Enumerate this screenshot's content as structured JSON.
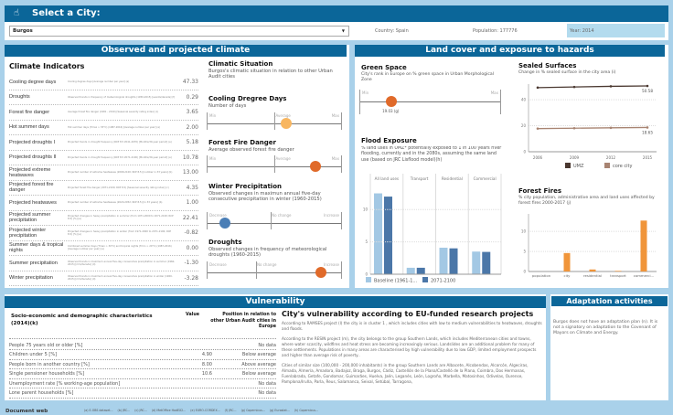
{
  "header": {
    "title": "Select a City:",
    "city": "Burgos",
    "country": "Country: Spain",
    "population": "Population: 177776",
    "year": "Year: 2014"
  },
  "colors": {
    "header": "#0b6699",
    "background": "#a9d1ea",
    "umz": "#4a3830",
    "core_city": "#a88472",
    "baseline": "#a3c8e4",
    "future": "#4b77a8",
    "fires": "#f0953a"
  },
  "climate": {
    "title": "Observed and projected climate",
    "indicators_title": "Climate Indicators",
    "indicators": [
      {
        "name": "Cooling degree days",
        "desc": "Cooling degree days [Average number per year] (a)",
        "value": "47.33"
      },
      {
        "name": "Droughts",
        "desc": "Observed trends in frequency of meteorological droughts (1950-2015) [events/decade] (f)",
        "value": "0.29"
      },
      {
        "name": "Forest fire danger",
        "desc": "Average forest fire danger (1981 - 2010) [Seasonal severity rating index] (c)",
        "value": "3.65"
      },
      {
        "name": "Hot summer days",
        "desc": "Hot summer days (Tmax > 35°C) (1987-2016) [Average number per year] (a)",
        "value": "2.00"
      },
      {
        "name": "Projected droughts I",
        "desc": "Projected trends in drought frequency (RCP 8.5 2041-2070) [Months/30-year period] (e)",
        "value": "5.18"
      },
      {
        "name": "Projected droughts II",
        "desc": "Projected trends in drought frequency (RCP 8.5 2071-2100) [Months/30-year period] (e)",
        "value": "10.78"
      },
      {
        "name": "Projected extreme heatwaves",
        "desc": "Projected number of extreme heatwaves (2068-2100; RCP 8.5) [number in 33 years] (b)",
        "value": "13.00"
      },
      {
        "name": "Projected forest fire danger",
        "desc": "Projected forest fire danger (2071-2100; RCP 8.5) [Seasonal severity rating index] (c)",
        "value": "4.35"
      },
      {
        "name": "Projected heatwaves",
        "desc": "Projected number of extreme heatwaves (2020-2052; RCP 8.5) [in 33 years] (b)",
        "value": "1.00"
      },
      {
        "name": "Projected summer precipitation",
        "desc": "Projected changes in heavy precipitation in summer (from 1971-2000 to 2071-2100; RCP 8.5) [%] (e)",
        "value": "22.41"
      },
      {
        "name": "Projected winter precipitation",
        "desc": "Projected changes in heavy precipitation in winter (from 1971-2000 to 2071-2100; RCP 8.5) [%] (e)",
        "value": "-0.82"
      },
      {
        "name": "Summer days & tropical nights",
        "desc": "Combined summer days (Tmax > 30°C) and tropical nights (Tmin > 20°C) (1987-2016) [Average number per year] (a)",
        "value": "0.00"
      },
      {
        "name": "Summer precipitation",
        "desc": "Observed trends in maximum annual five-day consecutive precipitation in summer (1960-2015) [mm/decade] (d)",
        "value": "-1.30"
      },
      {
        "name": "Winter precipitation",
        "desc": "Observed trends in maximum annual five-day consecutive precipitation in winter (1960-2015) [mm/decade] (d)",
        "value": "-3.28"
      }
    ],
    "situation": {
      "title": "Climatic Situation",
      "desc": "Burgos's climatic situation in relation to other Urban Audit cities"
    },
    "sliders": [
      {
        "title": "Cooling Dregree Days",
        "desc": "Number of days",
        "left": "Min",
        "mid": "Average",
        "right": "Max",
        "position": 0.58,
        "color": "#f8b660"
      },
      {
        "title": "Forest Fire Danger",
        "desc": "Average observed forest fire danger",
        "left": "Min",
        "mid": "Average",
        "right": "Max",
        "position": 0.8,
        "color": "#e06a2a"
      },
      {
        "title": "Winter Precipitation",
        "desc": "Observed changes in maximun annual five-day consecutive precipitation in winter (1960-2015)",
        "left": "Decrease",
        "mid": "No change",
        "right": "Increase",
        "position": 0.13,
        "color": "#4a7eb6"
      },
      {
        "title": "Droughts",
        "desc": "Observed changes in frequency of meteorological droughts (1960-2015)",
        "left": "Decrease",
        "mid": "No change",
        "right": "Increase",
        "position": 0.84,
        "color": "#e06a2a"
      }
    ]
  },
  "land": {
    "title": "Land cover and exposure to hazards",
    "green": {
      "title": "Green Space",
      "desc": "City's rank in Europe on % green space in Urban Morphological Zone",
      "left": "Min",
      "right": "Max",
      "position": 0.22,
      "value_label": "19.03 (g)",
      "color": "#e06a2a"
    },
    "flood": {
      "title": "Flood Exposure",
      "desc": "% land uses in UMZ* potentially exposed to 1 in 100 years river flooding, currently and in the 2080s, assuming the same land use (based on JRC Lisflood model)(h)"
    },
    "sealed": {
      "title": "Sealed Surfaces",
      "desc": "Change in % sealed surface in the city area (i)"
    },
    "fires": {
      "title": "Forest Fires",
      "desc": "% city population, administrative area and land uses affected by forest fires 2000-2017 (j)"
    }
  },
  "chart_data": [
    {
      "type": "bar",
      "categories": [
        "All land uses",
        "Transport",
        "Residential",
        "Commercial"
      ],
      "series": [
        {
          "name": "Baseline (1961-1...",
          "values": [
            12.5,
            1.0,
            4.1,
            3.5
          ]
        },
        {
          "name": "2071-2100",
          "values": [
            12.0,
            1.0,
            4.0,
            3.45
          ]
        }
      ],
      "ylim": [
        0,
        13
      ],
      "yticks": [
        0,
        5,
        10
      ],
      "legend": "bottom",
      "grid": true
    },
    {
      "type": "line",
      "x": [
        "2006",
        "2009",
        "2012",
        "2015"
      ],
      "series": [
        {
          "name": "UMZ",
          "values": [
            49.3,
            49.8,
            50.3,
            50.58
          ]
        },
        {
          "name": "core city",
          "values": [
            17.8,
            18.1,
            18.4,
            18.65
          ]
        }
      ],
      "labels": [
        "50.58",
        "18.65"
      ],
      "ylim": [
        0,
        52
      ],
      "yticks": [
        0,
        20,
        40
      ],
      "legend": "bottom",
      "grid": true
    },
    {
      "type": "bar",
      "categories": [
        "population",
        "city",
        "residential",
        "transport",
        "commerci..."
      ],
      "values": [
        0,
        4.6,
        0.5,
        0.15,
        12.7
      ],
      "ylim": [
        0,
        13
      ],
      "yticks": [
        0,
        5,
        10
      ],
      "grid": true
    }
  ],
  "vulnerability": {
    "title": "Vulnerability",
    "table_title": "Socio-economic and demographic characteristics (2014)(k)",
    "col_value": "Value",
    "col_position": "Position in relation to other Urban Audit cities in Europe",
    "rows": [
      {
        "name": "People 75 years old or older [%]",
        "value": "",
        "position": "No data"
      },
      {
        "name": "Children under 5 [%]",
        "value": "4.90",
        "position": "Below average"
      },
      {
        "name": "People born in another country [%]",
        "value": "8.00",
        "position": "Above average"
      },
      {
        "name": "Single pensioner households [%]",
        "value": "10.6",
        "position": "Below average"
      },
      {
        "name": "Unemployment rate [% working-age population]",
        "value": "",
        "position": "No data"
      },
      {
        "name": "Lone parent households [%]",
        "value": "",
        "position": "No data"
      }
    ],
    "research_title": "City's vulnerability according to EU-funded research projects",
    "paragraphs": [
      "According to RAMSES project (l) the city is in cluster 1 , which includes cities with low to medium vulnerabilities to heatwaves, droughts and floods.",
      "According to the RESIN project (m), the city belongs to the group Southern Lands, which includes Mediterranean cities and towns, where water scarcity, wildfires and heat stress are becoming increasingly serious. Landslides are an additional problem for many of these settlements. Populations in many areas are characterised by high vulnerability due to low GDP, limited employment prospects and higher than average risk of poverty..",
      "Cities of similar size (100,000 - 200,000 inhabitants) in the group Southern Lands  are Albacete, Alcobendas, Alcorcón, Algeciras, Almada, Almería, Amadora, Badajoz, Braga, Burgos, Cádiz, Castellón de la Plana/Castelló de la Plana, Coimbra, Dos Hermanas, Fuenlabrada, Getafe, Gondomar, Guimarães, Huelva, Jaén, Leganés, León, Logroño, Marbella, Matosinhos, Odivelas, Ourense, Pamplona/Iruña, Parla, Reus, Salamanca, Seixal, Setúbal, Tarragona,"
    ]
  },
  "adaptation": {
    "title": "Adaptation activities",
    "text": "Burgos does not have an adaptation plan (n). It is not a signatory on adaptation to the Covenant of Mayors on Climate and Energy."
  },
  "footer": {
    "title": "Document web",
    "sources": [
      "(a) E-OBS dataset...",
      "(b) JRC...",
      "(c) JRC...",
      "(d) MetOffice HadEX2...",
      "(e) EURO-CORDEX...",
      "(f) JRC...",
      "(g) Copernicus...",
      "(g) Eurostat...",
      "(h) Copernicus..."
    ]
  }
}
